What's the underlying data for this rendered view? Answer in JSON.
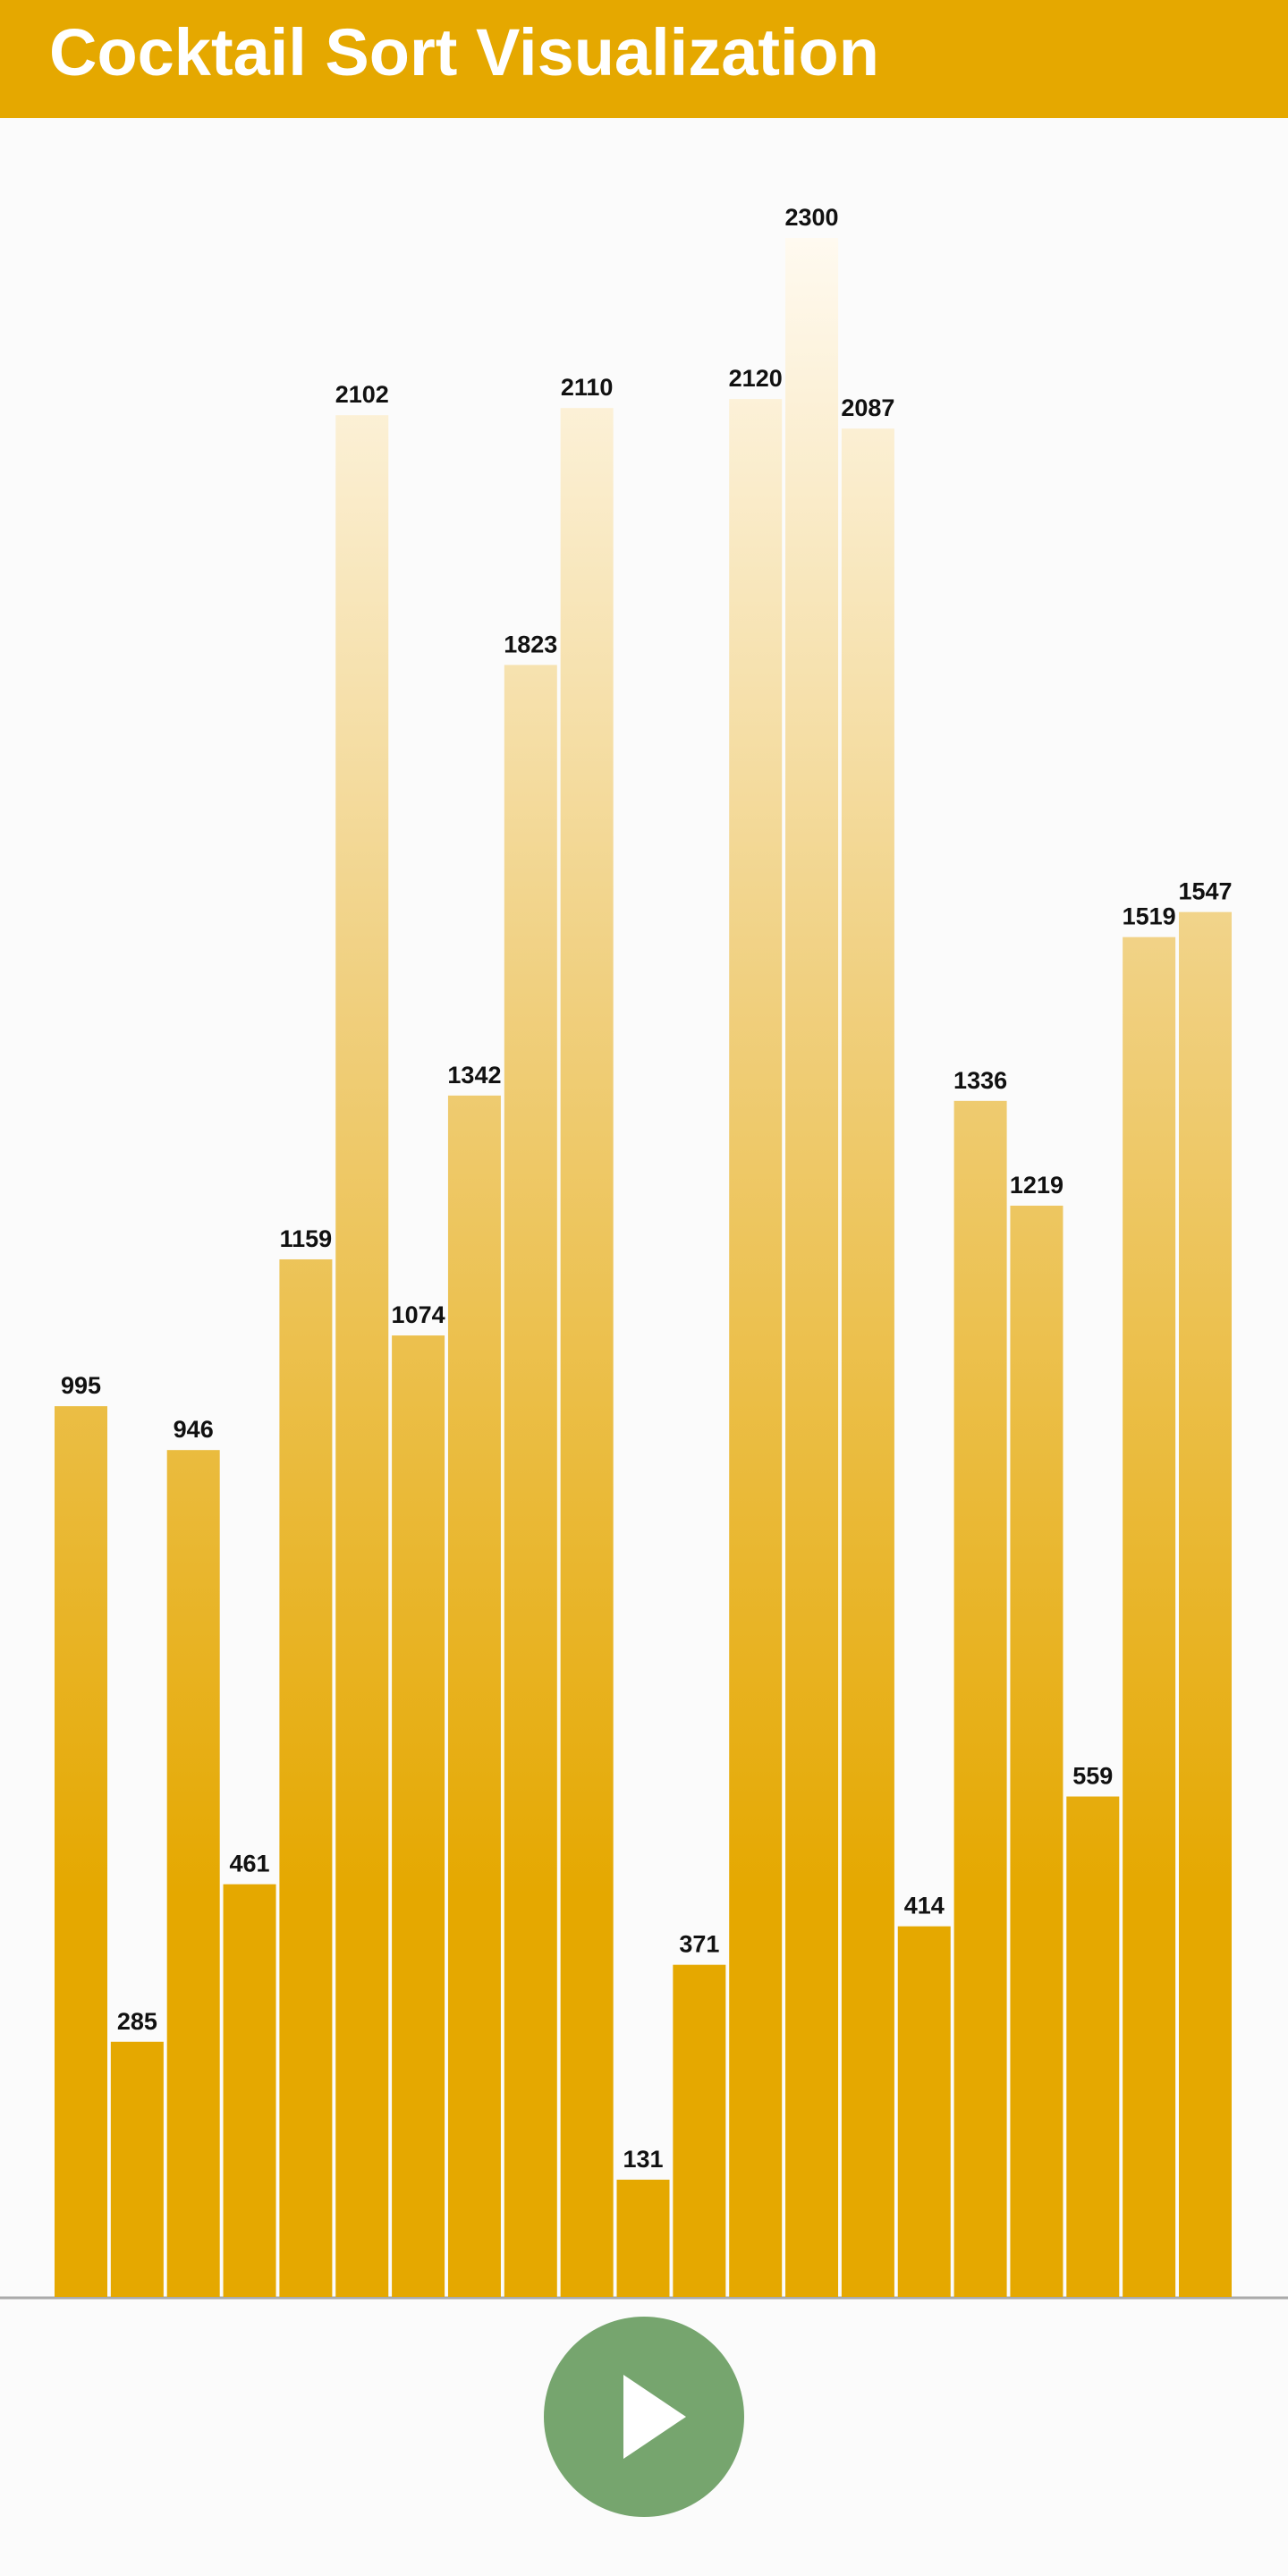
{
  "header": {
    "title": "Cocktail Sort Visualization"
  },
  "chart_data": {
    "type": "bar",
    "values": [
      995,
      285,
      946,
      461,
      1159,
      2102,
      1074,
      1342,
      1823,
      2110,
      131,
      371,
      2120,
      2300,
      2087,
      414,
      1336,
      1219,
      559,
      1519,
      1547
    ],
    "color": "#e5a800"
  }
}
